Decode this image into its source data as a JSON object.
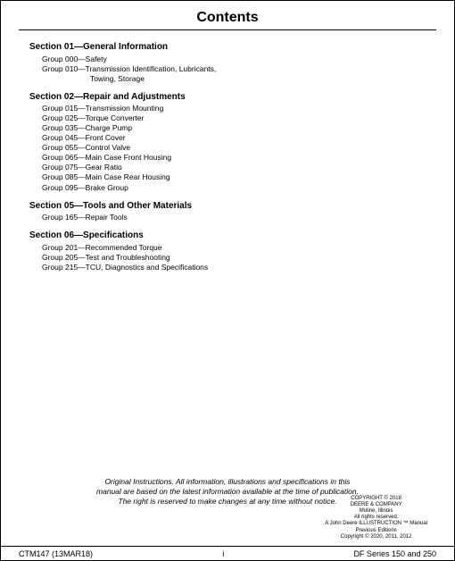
{
  "header": {
    "title": "Contents"
  },
  "sections": [
    {
      "heading": "Section 01—General Information",
      "groups": [
        {
          "text": "Group 000—Safety"
        },
        {
          "text": "Group 010—Transmission Identification, Lubricants,",
          "cont": "Towing, Storage"
        }
      ]
    },
    {
      "heading": "Section 02—Repair and Adjustments",
      "groups": [
        {
          "text": "Group 015—Transmission Mounting"
        },
        {
          "text": "Group 025—Torque Converter"
        },
        {
          "text": "Group 035—Charge Pump"
        },
        {
          "text": "Group 045—Front Cover"
        },
        {
          "text": "Group 055—Control Valve"
        },
        {
          "text": "Group 065—Main Case Front Housing"
        },
        {
          "text": "Group 075—Gear Ratio"
        },
        {
          "text": "Group 085—Main Case Rear Housing"
        },
        {
          "text": "Group 095—Brake Group"
        }
      ]
    },
    {
      "heading": "Section 05—Tools and Other Materials",
      "groups": [
        {
          "text": "Group 165—Repair Tools"
        }
      ]
    },
    {
      "heading": "Section 06—Specifications",
      "groups": [
        {
          "text": "Group 201—Recommended Torque"
        },
        {
          "text": "Group 205—Test and Troubleshooting"
        },
        {
          "text": "Group 215—TCU, Diagnostics and Specifications"
        }
      ]
    }
  ],
  "disclaimer": {
    "line1": "Original Instructions. All information, illustrations and specifications in this",
    "line2": "manual are based on the latest information available at the time of publication.",
    "line3": "The right is reserved to make changes at any time without notice."
  },
  "copyright": {
    "line1": "COPYRIGHT © 2018",
    "line2": "DEERE & COMPANY",
    "line3": "Moline, Illinois",
    "line4": "All rights reserved.",
    "line5": "A John Deere ILLUSTRUCTION ™ Manual",
    "line6": "Previous Editions",
    "line7": "Copyright © 2020, 2011, 2012"
  },
  "footer": {
    "left": "CTM147 (13MAR18)",
    "center": "i",
    "right": "DF Series 150 and 250"
  }
}
